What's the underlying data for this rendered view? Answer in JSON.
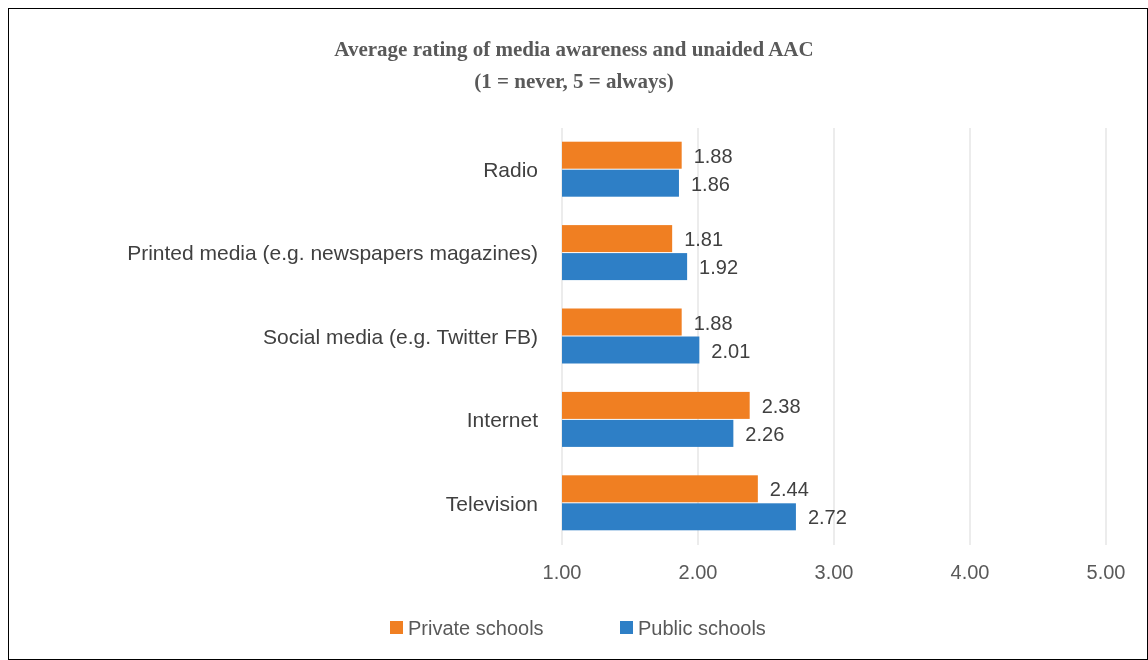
{
  "chart_data": {
    "type": "bar",
    "orientation": "horizontal",
    "title": "Average rating of media awareness and unaided AAC\n(1 = never, 5 = always)",
    "categories": [
      "Radio",
      "Printed media (e.g. newspapers magazines)",
      "Social media (e.g. Twitter FB)",
      "Internet",
      "Television"
    ],
    "series": [
      {
        "name": "Private schools",
        "color": "#f07f22",
        "values": [
          1.88,
          1.81,
          1.88,
          2.38,
          2.44
        ]
      },
      {
        "name": "Public schools",
        "color": "#2e7fc6",
        "values": [
          1.86,
          1.92,
          2.01,
          2.26,
          2.72
        ]
      }
    ],
    "xlim": [
      1,
      5
    ],
    "xticks": [
      {
        "value": 1,
        "label": "1.00"
      },
      {
        "value": 2,
        "label": "2.00"
      },
      {
        "value": 3,
        "label": "3.00"
      },
      {
        "value": 4,
        "label": "4.00"
      },
      {
        "value": 5,
        "label": "5.00"
      }
    ],
    "grid": "x",
    "legend": "bottom",
    "data_labels": true
  }
}
